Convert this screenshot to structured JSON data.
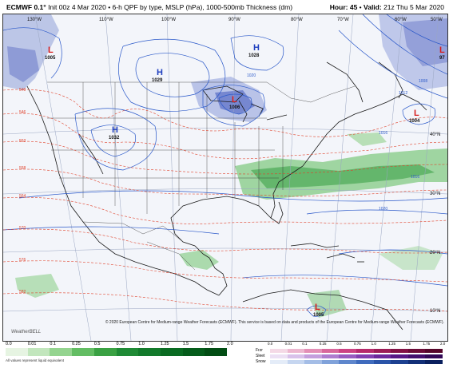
{
  "header": {
    "model": "ECMWF 0.1°",
    "init": "Init 00z 4 Mar 2020",
    "product": "6-h QPF by type, MSLP (hPa), 1000-500mb Thickness (dm)",
    "hour_label": "Hour:",
    "hour": "45",
    "valid_label": "Valid:",
    "valid": "21z Thu 5 Mar 2020"
  },
  "map": {
    "longitude_labels": [
      "130°W",
      "110°W",
      "100°W",
      "90°W",
      "80°W",
      "70°W",
      "60°W",
      "50°W"
    ],
    "latitude_labels": [
      "40°N",
      "30°N",
      "20°N",
      "10°N"
    ],
    "centers": [
      {
        "type": "L",
        "value": "1005"
      },
      {
        "type": "H",
        "value": "1029"
      },
      {
        "type": "H",
        "value": "1028"
      },
      {
        "type": "L",
        "value": "1006"
      },
      {
        "type": "H",
        "value": "1032"
      },
      {
        "type": "L",
        "value": "1004"
      },
      {
        "type": "L",
        "value": "97"
      },
      {
        "type": "L",
        "value": "1005"
      }
    ],
    "isobar_labels": [
      "1020",
      "1016",
      "1012",
      "1008",
      "1020",
      "1016"
    ],
    "thickness_labels": [
      "540",
      "546",
      "552",
      "558",
      "564",
      "570",
      "576",
      "582"
    ],
    "copyright": "© 2020 European Centre for Medium-range Weather Forecasts (ECMWF). This service is based on data and products of the European Centre for Medium-range Weather Forecasts (ECMWF).",
    "logo": "WeatherBELL"
  },
  "legend": {
    "rain_ticks": [
      "0.0",
      "0.01",
      "0.1",
      "0.25",
      "0.5",
      "0.75",
      "1.0",
      "1.25",
      "1.5",
      "1.75",
      "2.0"
    ],
    "rain_colors": [
      "#e6f4e2",
      "#c2e6bd",
      "#94d48f",
      "#63bd63",
      "#3aa143",
      "#1f8a35",
      "#137a2b",
      "#0a6b22",
      "#055c1b",
      "#024d14"
    ],
    "note": "All values represent liquid equivalent",
    "ptype_ticks": [
      "0.0",
      "0.01",
      "0.1",
      "0.25",
      "0.5",
      "0.75",
      "1.0",
      "1.25",
      "1.5",
      "1.75",
      "2.0"
    ],
    "ptypes": [
      {
        "label": "Frzr",
        "colors": [
          "#f4d9e6",
          "#ecb6cf",
          "#e38fb6",
          "#d8679c",
          "#cc4283",
          "#b62a6b",
          "#9b1c56",
          "#821245",
          "#6b0b37",
          "#55062a"
        ]
      },
      {
        "label": "Sleet",
        "colors": [
          "#ece0f4",
          "#d8c1ea",
          "#c49fdd",
          "#ae7ccf",
          "#985cc0",
          "#823fb0",
          "#6c289c",
          "#571986",
          "#430f6e",
          "#320856"
        ]
      },
      {
        "label": "Snow",
        "colors": [
          "#e4ecf8",
          "#c6d6f0",
          "#a4bde6",
          "#80a2da",
          "#5e86cc",
          "#3f6bbd",
          "#2a54a8",
          "#1c4090",
          "#122f77",
          "#0a205e"
        ]
      }
    ]
  }
}
